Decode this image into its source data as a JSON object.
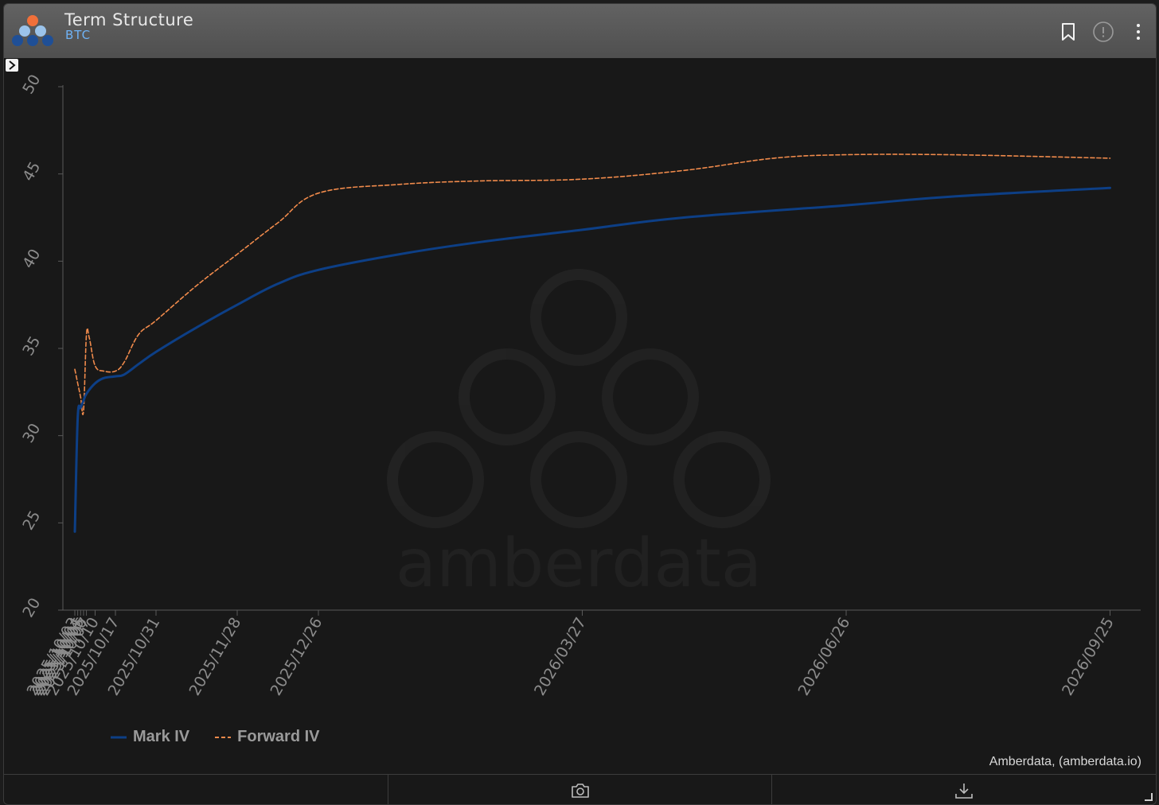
{
  "header": {
    "title": "Term Structure",
    "subtitle": "BTC",
    "icons": [
      "bookmark-icon",
      "info-icon",
      "more-vertical-icon"
    ]
  },
  "watermark_text": "amberdata",
  "source_credit": "Amberdata, (amberdata.io)",
  "footer": {
    "icons": [
      "camera-icon",
      "download-icon"
    ]
  },
  "colors": {
    "mark_iv": "#0d3f86",
    "forward_iv": "#f08a4b",
    "axis": "#5a5a5a",
    "tick_text": "#8c8c8c",
    "background": "#181818"
  },
  "chart_data": {
    "type": "line",
    "title": "",
    "xlabel": "",
    "ylabel": "",
    "ylim": [
      20,
      50
    ],
    "yticks": [
      20,
      25,
      30,
      35,
      40,
      45,
      50
    ],
    "x_axis": "date",
    "xlim": [
      "2025-10-03",
      "2026-10-02"
    ],
    "xtick_labels": [
      "2025/10/03",
      "2025/10/04",
      "2025/10/05",
      "2025/10/06",
      "2025/10/07",
      "2025/10/10",
      "2025/10/17",
      "2025/10/31",
      "2025/11/28",
      "2025/12/26",
      "2026/03/27",
      "2026/06/26",
      "2026/09/25"
    ],
    "xtick_dates": [
      "2025-10-03",
      "2025-10-04",
      "2025-10-05",
      "2025-10-06",
      "2025-10-07",
      "2025-10-10",
      "2025-10-17",
      "2025-10-31",
      "2025-11-28",
      "2025-12-26",
      "2026-03-27",
      "2026-06-26",
      "2026-09-25"
    ],
    "legend_position": "bottom-left",
    "grid": false,
    "series": [
      {
        "name": "Mark IV",
        "style": "solid",
        "points": [
          [
            "2025-10-03",
            24.5
          ],
          [
            "2025-10-04",
            31.0
          ],
          [
            "2025-10-05",
            31.6
          ],
          [
            "2025-10-06",
            32.0
          ],
          [
            "2025-10-07",
            32.4
          ],
          [
            "2025-10-10",
            33.0
          ],
          [
            "2025-10-13",
            33.3
          ],
          [
            "2025-10-17",
            33.4
          ],
          [
            "2025-10-20",
            33.5
          ],
          [
            "2025-10-25",
            34.1
          ],
          [
            "2025-10-31",
            34.8
          ],
          [
            "2025-11-14",
            36.2
          ],
          [
            "2025-11-28",
            37.5
          ],
          [
            "2025-12-12",
            38.7
          ],
          [
            "2025-12-26",
            39.5
          ],
          [
            "2026-01-23",
            40.4
          ],
          [
            "2026-02-20",
            41.1
          ],
          [
            "2026-03-27",
            41.8
          ],
          [
            "2026-05-01",
            42.5
          ],
          [
            "2026-06-26",
            43.2
          ],
          [
            "2026-08-01",
            43.7
          ],
          [
            "2026-09-25",
            44.2
          ]
        ]
      },
      {
        "name": "Forward IV",
        "style": "dashed",
        "points": [
          [
            "2025-10-03",
            33.8
          ],
          [
            "2025-10-04",
            33.0
          ],
          [
            "2025-10-05",
            32.2
          ],
          [
            "2025-10-06",
            31.4
          ],
          [
            "2025-10-07",
            35.8
          ],
          [
            "2025-10-08",
            35.6
          ],
          [
            "2025-10-10",
            34.0
          ],
          [
            "2025-10-13",
            33.7
          ],
          [
            "2025-10-17",
            33.7
          ],
          [
            "2025-10-20",
            34.2
          ],
          [
            "2025-10-25",
            35.8
          ],
          [
            "2025-10-31",
            36.6
          ],
          [
            "2025-11-14",
            38.6
          ],
          [
            "2025-11-28",
            40.4
          ],
          [
            "2025-12-12",
            42.2
          ],
          [
            "2025-12-26",
            43.9
          ],
          [
            "2026-01-23",
            44.4
          ],
          [
            "2026-02-20",
            44.6
          ],
          [
            "2026-03-27",
            44.7
          ],
          [
            "2026-05-01",
            45.2
          ],
          [
            "2026-06-01",
            45.9
          ],
          [
            "2026-06-26",
            46.1
          ],
          [
            "2026-08-01",
            46.1
          ],
          [
            "2026-09-25",
            45.9
          ]
        ]
      }
    ]
  }
}
